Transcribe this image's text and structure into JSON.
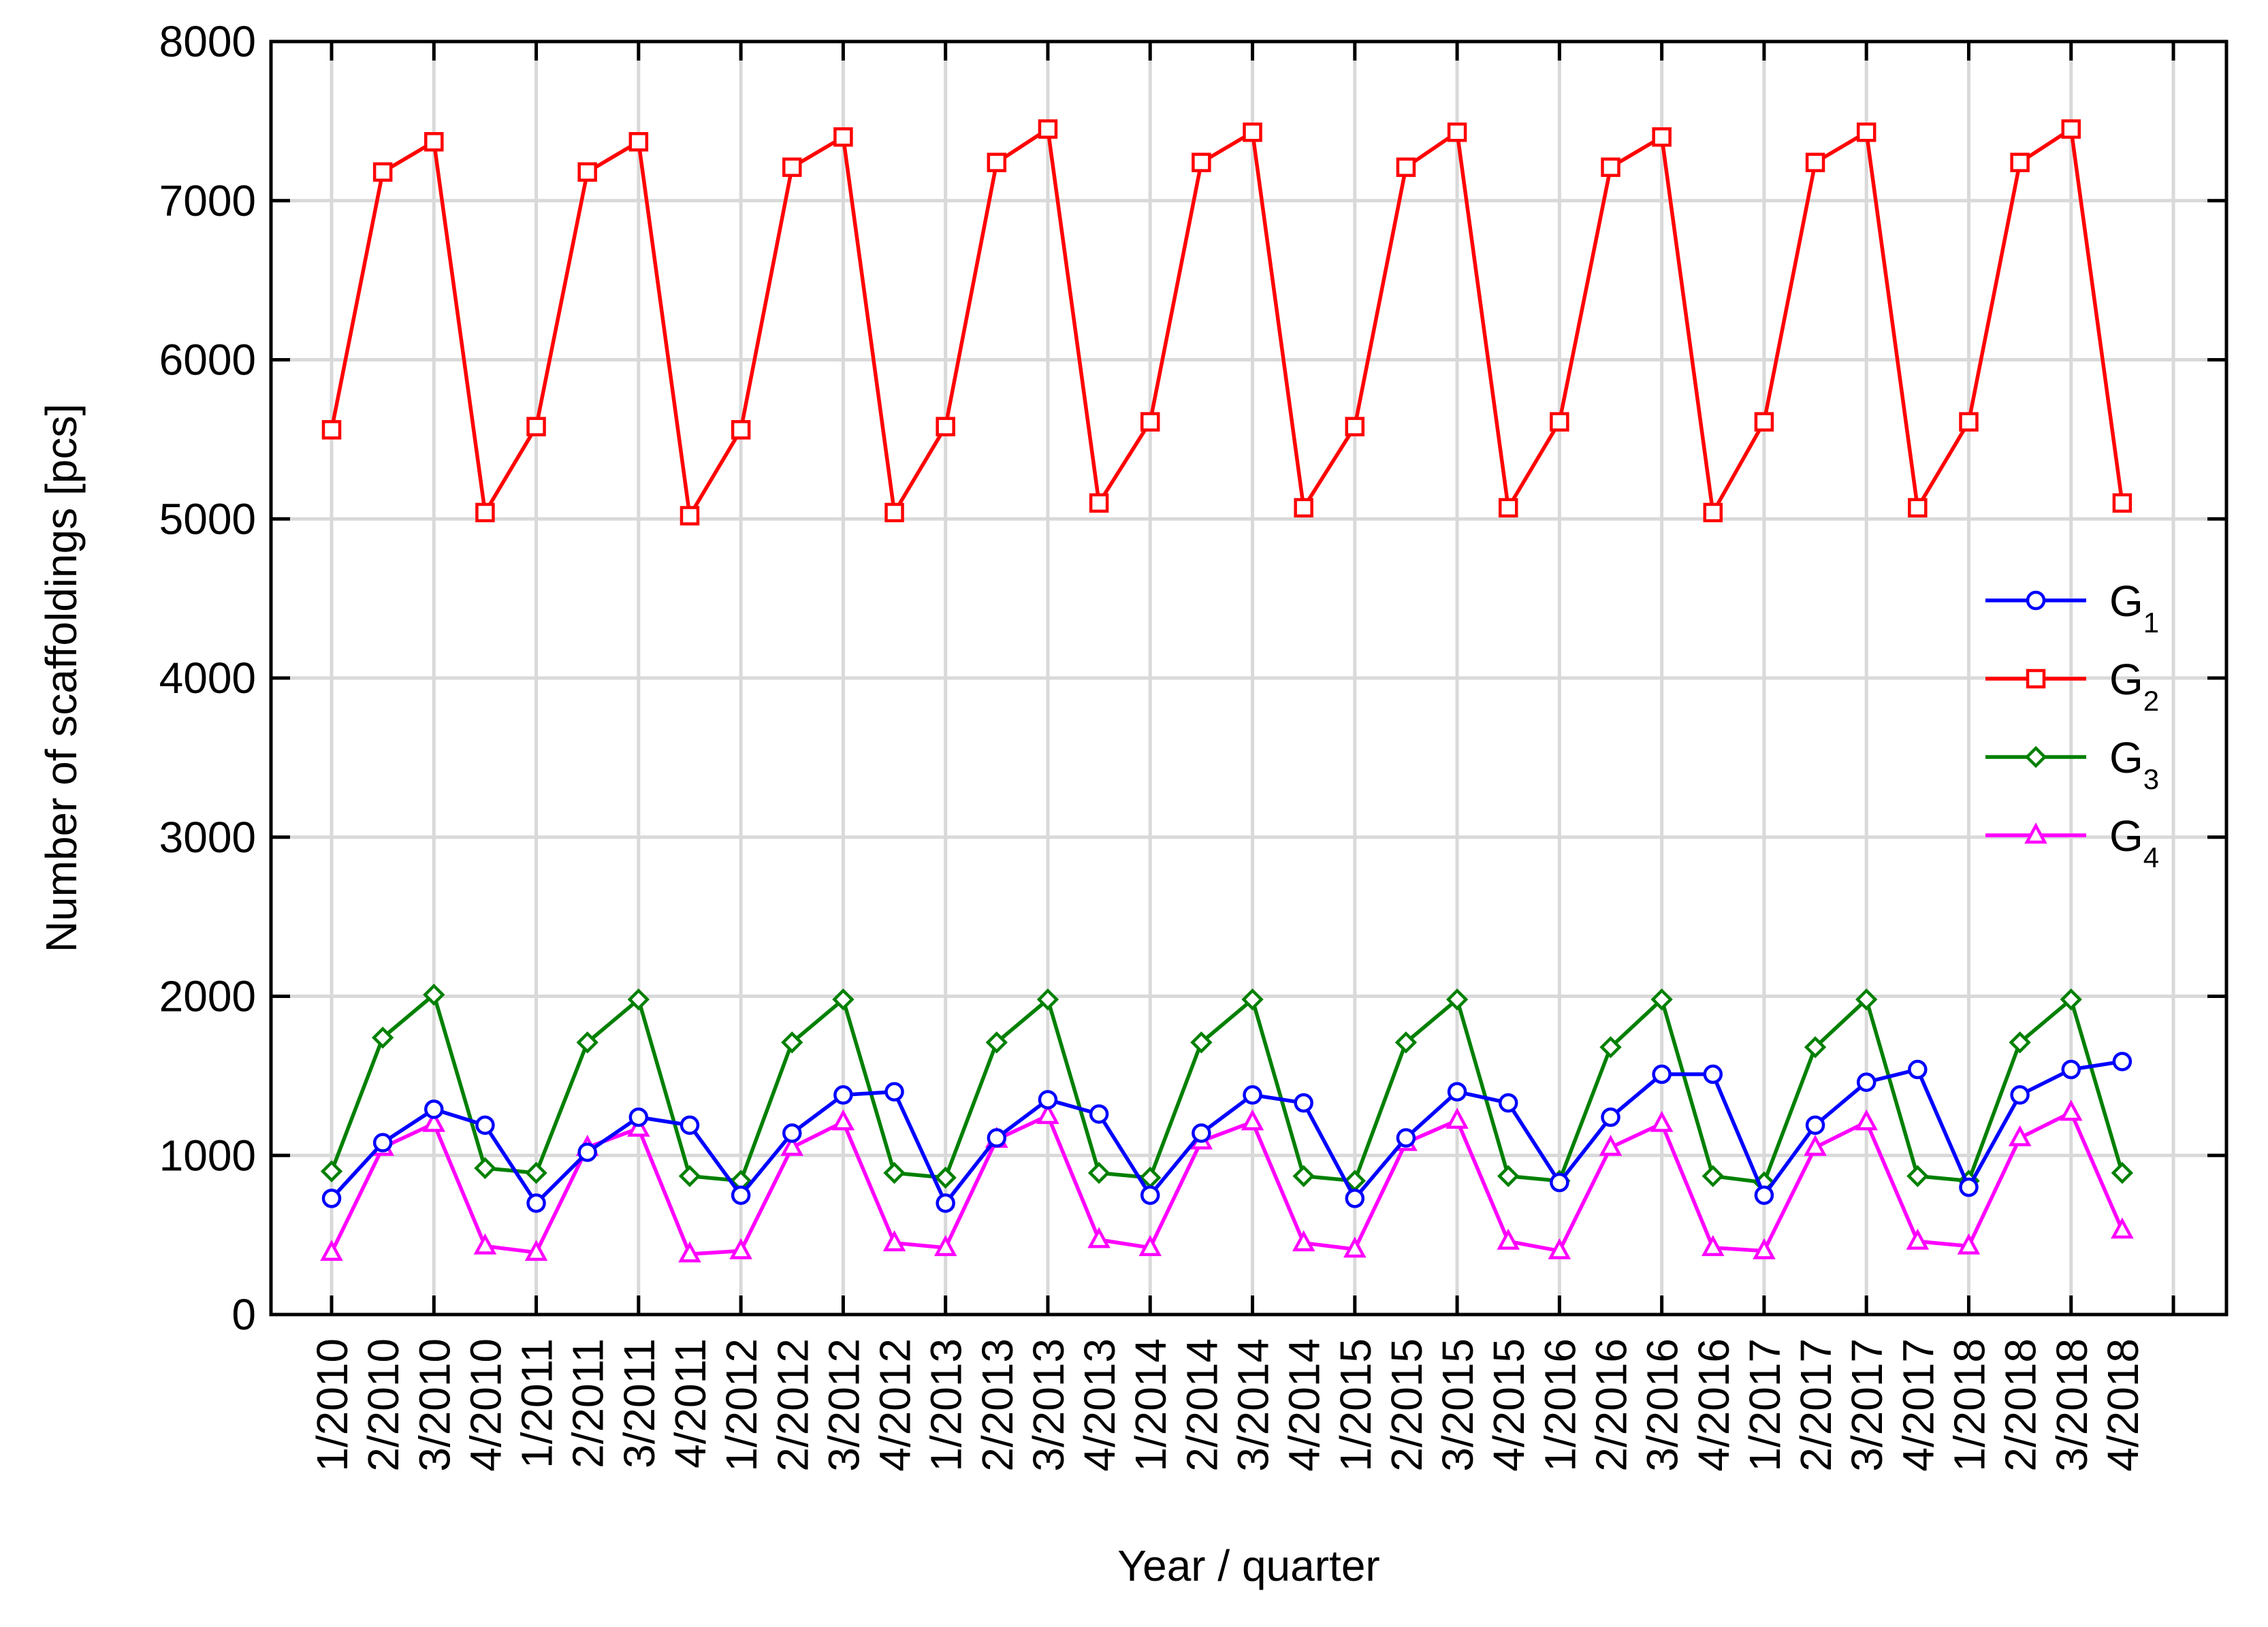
{
  "chart_data": {
    "type": "line",
    "title": "",
    "xlabel": "Year / quarter",
    "ylabel": "Number of scaffoldings [pcs]",
    "ylim": [
      0,
      8000
    ],
    "yticks": [
      "0",
      "1000",
      "2000",
      "3000",
      "4000",
      "5000",
      "6000",
      "7000",
      "8000"
    ],
    "ytick_values": [
      0,
      1000,
      2000,
      3000,
      4000,
      5000,
      6000,
      7000,
      8000
    ],
    "grid": true,
    "legend_position": "right",
    "categories": [
      "1/2010",
      "2/2010",
      "3/2010",
      "4/2010",
      "1/2011",
      "2/2011",
      "3/2011",
      "4/2011",
      "1/2012",
      "2/2012",
      "3/2012",
      "4/2012",
      "1/2013",
      "2/2013",
      "3/2013",
      "4/2013",
      "1/2014",
      "2/2014",
      "3/2014",
      "4/2014",
      "1/2015",
      "2/2015",
      "3/2015",
      "4/2015",
      "1/2016",
      "2/2016",
      "3/2016",
      "4/2016",
      "1/2017",
      "2/2017",
      "3/2017",
      "4/2017",
      "1/2018",
      "2/2018",
      "3/2018",
      "4/2018"
    ],
    "series": [
      {
        "name": "G",
        "subscript": "1",
        "color": "#0000ff",
        "marker": "circle",
        "values": [
          730,
          1080,
          1290,
          1190,
          700,
          1020,
          1240,
          1190,
          750,
          1140,
          1380,
          1400,
          700,
          1110,
          1350,
          1260,
          750,
          1140,
          1380,
          1330,
          730,
          1110,
          1400,
          1330,
          830,
          1240,
          1510,
          1510,
          750,
          1190,
          1460,
          1540,
          800,
          1380,
          1540,
          1590
        ]
      },
      {
        "name": "G",
        "subscript": "2",
        "color": "#ff0000",
        "marker": "square",
        "values": [
          5560,
          7180,
          7370,
          5040,
          5580,
          7180,
          7370,
          5020,
          5560,
          7210,
          7400,
          5040,
          5580,
          7240,
          7450,
          5100,
          5610,
          7240,
          7430,
          5070,
          5580,
          7210,
          7430,
          5070,
          5610,
          7210,
          7400,
          5040,
          5610,
          7240,
          7430,
          5070,
          5610,
          7240,
          7450,
          5100
        ]
      },
      {
        "name": "G",
        "subscript": "3",
        "color": "#008000",
        "marker": "diamond",
        "values": [
          900,
          1740,
          2010,
          920,
          890,
          1710,
          1980,
          870,
          840,
          1710,
          1980,
          890,
          860,
          1710,
          1980,
          890,
          860,
          1710,
          1980,
          870,
          840,
          1710,
          1980,
          870,
          840,
          1680,
          1980,
          870,
          830,
          1680,
          1980,
          870,
          840,
          1710,
          1980,
          890
        ]
      },
      {
        "name": "G",
        "subscript": "4",
        "color": "#ff00ff",
        "marker": "triangle",
        "values": [
          390,
          1050,
          1200,
          430,
          390,
          1050,
          1170,
          380,
          400,
          1050,
          1210,
          450,
          420,
          1100,
          1250,
          470,
          420,
          1090,
          1210,
          450,
          410,
          1080,
          1220,
          460,
          400,
          1050,
          1200,
          420,
          400,
          1050,
          1210,
          460,
          430,
          1110,
          1270,
          530
        ]
      }
    ]
  }
}
